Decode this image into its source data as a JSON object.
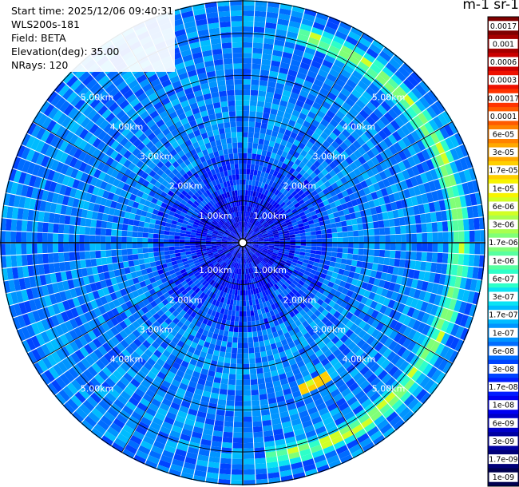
{
  "header": {
    "start_time": "Start time: 2025/12/06 09:40:31",
    "instrument": "WLS200s-181",
    "field": "Field: BETA",
    "elevation": "Elevation(deg): 35.00",
    "nrays": "NRays: 120"
  },
  "colorbar": {
    "title": "m-1 sr-1",
    "ticks": [
      "0.0017",
      "0.001",
      "0.0006",
      "0.0003",
      "0.00017",
      "0.0001",
      "6e-05",
      "3e-05",
      "1.7e-05",
      "1e-05",
      "6e-06",
      "3e-06",
      "1.7e-06",
      "1e-06",
      "6e-07",
      "3e-07",
      "1.7e-07",
      "1e-07",
      "6e-08",
      "3e-08",
      "1.7e-08",
      "1e-08",
      "6e-09",
      "3e-09",
      "1.7e-09",
      "1e-09"
    ],
    "colors": [
      "#7f0000",
      "#a50000",
      "#cc0000",
      "#ee1100",
      "#ff3300",
      "#ff5a00",
      "#ff8200",
      "#ffa800",
      "#ffcf00",
      "#f7f400",
      "#d2ff25",
      "#a9ff4e",
      "#80ff77",
      "#57ffa0",
      "#2effc9",
      "#0ae3f4",
      "#00bcff",
      "#0094ff",
      "#006cff",
      "#0044ff",
      "#001cff",
      "#0000f1",
      "#0000c8",
      "#0000a0",
      "#000078",
      "#000050"
    ]
  },
  "chart_data": {
    "type": "heatmap",
    "projection": "polar PPI scan",
    "range_rings_km": [
      1.0,
      2.0,
      3.0,
      4.0,
      5.0
    ],
    "ring_labels": [
      "1.00km",
      "2.00km",
      "3.00km",
      "4.00km",
      "5.00km"
    ],
    "max_range_km": 5.8,
    "n_rays": 120,
    "color_scale": "log",
    "value_range": [
      1e-09,
      0.0017
    ],
    "typical_background": "3e-08",
    "features": [
      {
        "label": "aerosol arc",
        "range_km": 5.2,
        "azimuth_deg_from": 15,
        "azimuth_deg_to": 175,
        "value": "6e-07"
      },
      {
        "label": "hotspot",
        "range_km": 3.8,
        "azimuth_deg": 152,
        "value": "1.7e-05"
      }
    ]
  }
}
